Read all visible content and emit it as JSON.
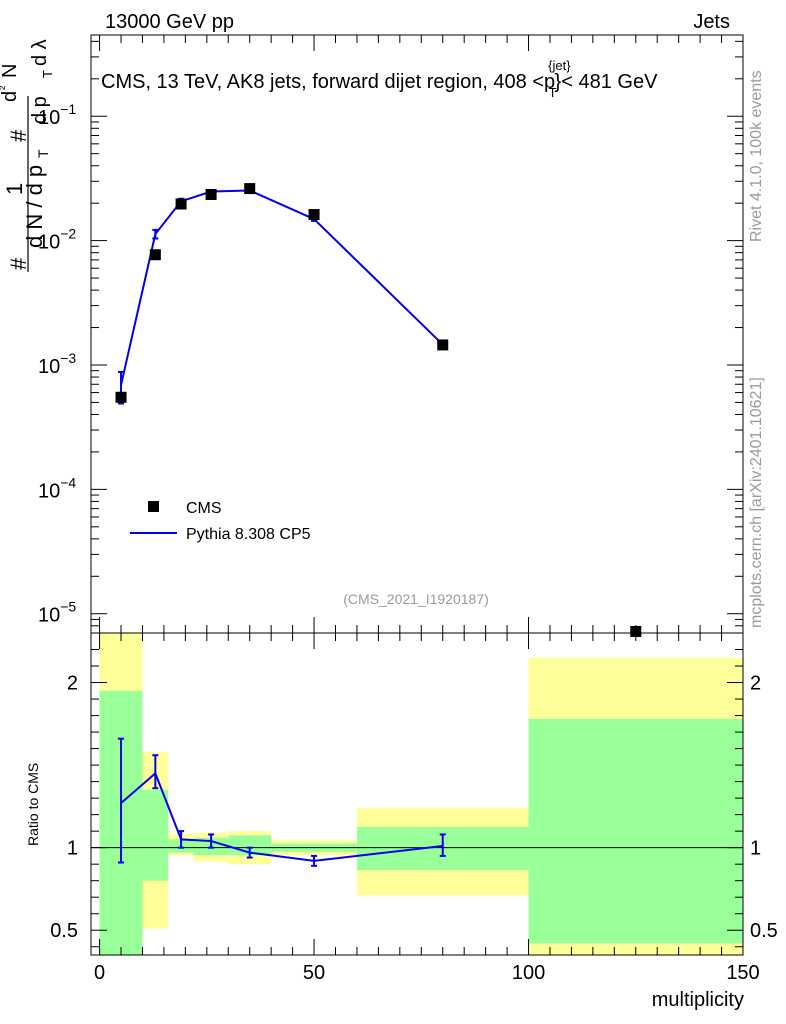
{
  "header": {
    "left": "13000 GeV pp",
    "right": "Jets"
  },
  "side_labels": {
    "rivet": "Rivet 4.1.0,  100k events",
    "mcplots": "mcplots.cern.ch [arXiv:2401.10621]"
  },
  "chart_data": [
    {
      "type": "scatter",
      "panel": "main",
      "title_parts": {
        "prefix": "CMS, 13 TeV, AK8 jets, forward dijet region, 408 <p",
        "sup": "{jet}",
        "sub": "T",
        "suffix": "}< 481 GeV"
      },
      "ylabel_parts": [
        "1",
        "d N / d p",
        "T",
        "#",
        "d",
        "²",
        "N",
        "d p",
        "T",
        "d λ"
      ],
      "watermark": "(CMS_2021_I1920187)",
      "yscale": "log",
      "xlim": [
        -2,
        150
      ],
      "ylim": [
        7e-06,
        0.45
      ],
      "y_ticks": [
        {
          "value": 0.1,
          "base": "10",
          "exp": "−1"
        },
        {
          "value": 0.01,
          "base": "10",
          "exp": "−2"
        },
        {
          "value": 0.001,
          "base": "10",
          "exp": "−3"
        },
        {
          "value": 0.0001,
          "base": "10",
          "exp": "−4"
        },
        {
          "value": 1e-05,
          "base": "10",
          "exp": "−5"
        }
      ],
      "legend": {
        "position": "lower-left",
        "entries": [
          "CMS",
          "Pythia 8.308 CP5"
        ]
      },
      "series": [
        {
          "name": "CMS",
          "style": "markers",
          "color": "#000000",
          "points": [
            {
              "x": 5,
              "y": 0.00055
            },
            {
              "x": 13,
              "y": 0.0077
            },
            {
              "x": 19,
              "y": 0.0197
            },
            {
              "x": 26,
              "y": 0.0235
            },
            {
              "x": 35,
              "y": 0.0262
            },
            {
              "x": 50,
              "y": 0.0162
            },
            {
              "x": 80,
              "y": 0.00145
            },
            {
              "x": 125,
              "y": 7.2e-06
            }
          ]
        },
        {
          "name": "Pythia 8.308 CP5",
          "style": "line",
          "color": "#0000ee",
          "points": [
            {
              "x": 5,
              "y": 0.00069,
              "ylo": 0.00049,
              "yhi": 0.00088
            },
            {
              "x": 13,
              "y": 0.0113,
              "ylo": 0.0104,
              "yhi": 0.0122
            },
            {
              "x": 19,
              "y": 0.0207,
              "ylo": 0.0197,
              "yhi": 0.0217
            },
            {
              "x": 26,
              "y": 0.0248,
              "ylo": 0.0241,
              "yhi": 0.0255
            },
            {
              "x": 35,
              "y": 0.0253,
              "ylo": 0.0247,
              "yhi": 0.0259
            },
            {
              "x": 50,
              "y": 0.0149,
              "ylo": 0.0144,
              "yhi": 0.0154
            },
            {
              "x": 80,
              "y": 0.00146,
              "ylo": 0.0014,
              "yhi": 0.00152
            }
          ]
        }
      ]
    },
    {
      "type": "scatter",
      "panel": "ratio",
      "ylabel": "Ratio to CMS",
      "xlabel": "multiplicity",
      "xlim": [
        -2,
        150
      ],
      "ylim": [
        0.35,
        2.3
      ],
      "x_ticks": [
        0,
        50,
        100,
        150
      ],
      "y_ticks": [
        {
          "value": 0.5,
          "label": "0.5"
        },
        {
          "value": 1,
          "label": "1"
        },
        {
          "value": 2,
          "label": "2"
        }
      ],
      "bands": [
        {
          "x0": 0,
          "x1": 10,
          "green": [
            0.2,
            1.95
          ],
          "yellow": [
            0.2,
            2.4
          ]
        },
        {
          "x0": 10,
          "x1": 16,
          "green": [
            0.8,
            1.35
          ],
          "yellow": [
            0.51,
            1.58
          ]
        },
        {
          "x0": 16,
          "x1": 22,
          "green": [
            0.97,
            1.05
          ],
          "yellow": [
            0.955,
            1.085
          ]
        },
        {
          "x0": 22,
          "x1": 30,
          "green": [
            0.955,
            1.06
          ],
          "yellow": [
            0.915,
            1.09
          ]
        },
        {
          "x0": 30,
          "x1": 40,
          "green": [
            0.955,
            1.075
          ],
          "yellow": [
            0.9,
            1.1
          ]
        },
        {
          "x0": 40,
          "x1": 60,
          "green": [
            0.975,
            1.025
          ],
          "yellow": [
            0.955,
            1.045
          ]
        },
        {
          "x0": 60,
          "x1": 100,
          "green": [
            0.865,
            1.125
          ],
          "yellow": [
            0.71,
            1.24
          ]
        },
        {
          "x0": 100,
          "x1": 150,
          "green": [
            0.42,
            1.78
          ],
          "yellow": [
            0.35,
            2.15
          ]
        }
      ],
      "series": [
        {
          "name": "Pythia 8.308 CP5",
          "color": "#0000ee",
          "points": [
            {
              "x": 5,
              "y": 1.27,
              "ylo": 0.91,
              "yhi": 1.66
            },
            {
              "x": 13,
              "y": 1.45,
              "ylo": 1.36,
              "yhi": 1.56
            },
            {
              "x": 19,
              "y": 1.05,
              "ylo": 1.0,
              "yhi": 1.1
            },
            {
              "x": 26,
              "y": 1.04,
              "ylo": 1.0,
              "yhi": 1.08
            },
            {
              "x": 35,
              "y": 0.97,
              "ylo": 0.94,
              "yhi": 1.0
            },
            {
              "x": 50,
              "y": 0.92,
              "ylo": 0.89,
              "yhi": 0.95
            },
            {
              "x": 80,
              "y": 1.01,
              "ylo": 0.95,
              "yhi": 1.08
            }
          ]
        }
      ]
    }
  ]
}
